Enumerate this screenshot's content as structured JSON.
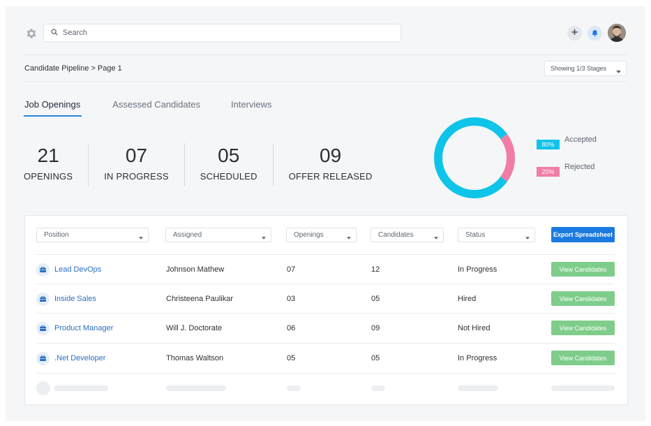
{
  "search": {
    "placeholder": "Search"
  },
  "breadcrumb": "Candidate Pipeline > Page 1",
  "stage_select": {
    "value": "Showing 1/3 Stages"
  },
  "tabs": [
    {
      "label": "Job Openings",
      "active": true
    },
    {
      "label": "Assessed Candidates",
      "active": false
    },
    {
      "label": "Interviews",
      "active": false
    }
  ],
  "stats": [
    {
      "value": "21",
      "label": "OPENINGS"
    },
    {
      "value": "07",
      "label": "IN PROGRESS"
    },
    {
      "value": "05",
      "label": "SCHEDULED"
    },
    {
      "value": "09",
      "label": "OFFER RELEASED"
    }
  ],
  "chart_data": {
    "type": "pie",
    "categories": [
      "Accepted",
      "Rejected"
    ],
    "values": [
      80,
      20
    ],
    "value_labels": [
      "80%",
      "20%"
    ],
    "colors": [
      "#0ec4e8",
      "#f07da6"
    ],
    "legend_position": "right"
  },
  "filters": [
    "Position",
    "Assigned",
    "Openings",
    "Candidates",
    "Status"
  ],
  "export_label": "Export Spreadsheet",
  "rows": [
    {
      "position": "Lead DevOps",
      "assigned": "Johnson Mathew",
      "openings": "07",
      "candidates": "12",
      "status": "In Progress",
      "action": "View Candidates"
    },
    {
      "position": "Inside Sales",
      "assigned": "Christeena Paulikar",
      "openings": "03",
      "candidates": "05",
      "status": "Hired",
      "action": "View Candidates"
    },
    {
      "position": "Product Manager",
      "assigned": "Will J. Doctorate",
      "openings": "06",
      "candidates": "09",
      "status": "Not Hired",
      "action": "View Candidates"
    },
    {
      "position": ".Net Developer",
      "assigned": "Thomas Waltson",
      "openings": "05",
      "candidates": "05",
      "status": "In Progress",
      "action": "View Candidates"
    }
  ],
  "colors": {
    "accent": "#1b7ae0",
    "link": "#2b6fc4",
    "success": "#7fcd8b",
    "tab_underline": "#2b86d9"
  },
  "icons": {
    "settings": "gear-icon",
    "search": "search-icon",
    "add": "plus-icon",
    "notifications": "bell-icon",
    "position": "briefcase-icon"
  }
}
